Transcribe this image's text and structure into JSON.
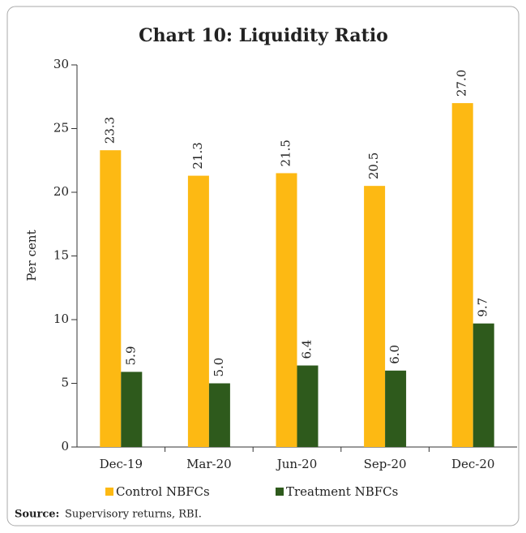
{
  "chart_data": {
    "type": "bar",
    "title": "Chart 10: Liquidity Ratio",
    "ylabel": "Per cent",
    "categories": [
      "Dec-19",
      "Mar-20",
      "Jun-20",
      "Sep-20",
      "Dec-20"
    ],
    "series": [
      {
        "name": "Control NBFCs",
        "color": "#fdb913",
        "values": [
          23.3,
          21.3,
          21.5,
          20.5,
          27.0
        ],
        "value_labels": [
          "23.3",
          "21.3",
          "21.5",
          "20.5",
          "27.0"
        ]
      },
      {
        "name": "Treatment NBFCs",
        "color": "#2e5a1c",
        "values": [
          5.9,
          5.0,
          6.4,
          6.0,
          9.7
        ],
        "value_labels": [
          "5.9",
          "5.0",
          "6.4",
          "6.0",
          "9.7"
        ]
      }
    ],
    "ylim": [
      0,
      30
    ],
    "yticks": [
      0,
      5,
      10,
      15,
      20,
      25,
      30
    ],
    "grid": false,
    "legend": "bottom",
    "source_label": "Source:",
    "source_text": "Supervisory returns, RBI."
  }
}
